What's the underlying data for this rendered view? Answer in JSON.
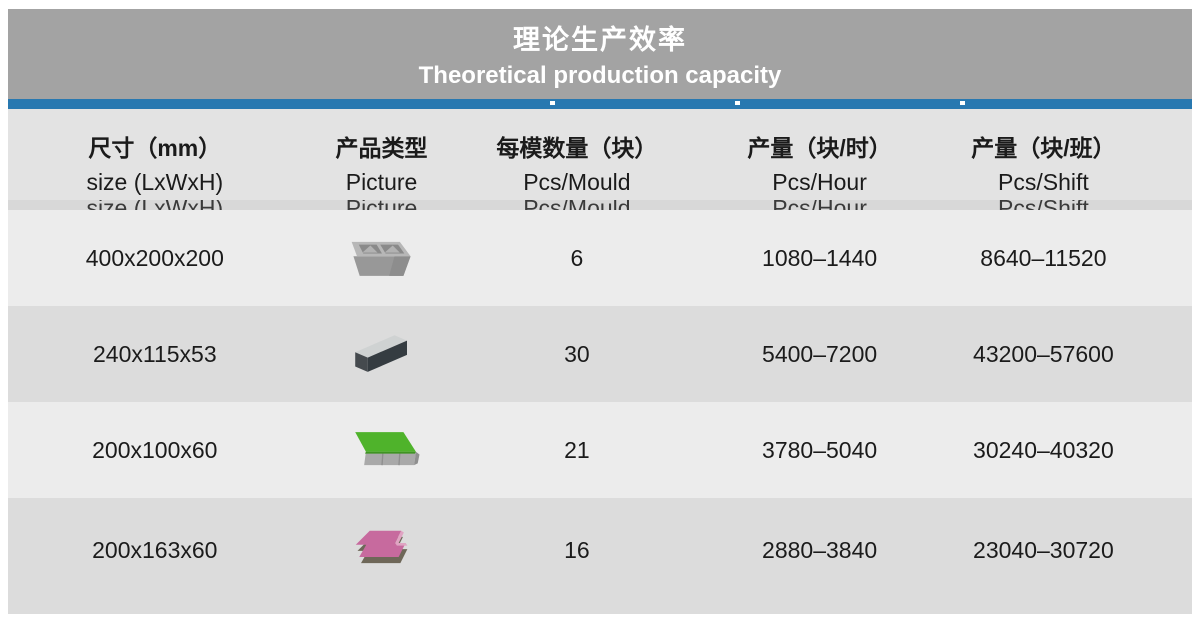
{
  "title": {
    "zh": "理论生产效率",
    "en": "Theoretical production capacity"
  },
  "table": {
    "columns": [
      {
        "zh": "尺寸（mm）",
        "en": "size (LxWxH)"
      },
      {
        "zh": "产品类型",
        "en": "Picture"
      },
      {
        "zh": "每模数量（块）",
        "en": "Pcs/Mould"
      },
      {
        "zh": "产量（块/时）",
        "en": "Pcs/Hour"
      },
      {
        "zh": "产量（块/班）",
        "en": "Pcs/Shift"
      }
    ],
    "rows": [
      {
        "size": "400x200x200",
        "picture": "hollow-block-icon",
        "pcs_mould": "6",
        "pcs_hour": "1080–1440",
        "pcs_shift": "8640–11520"
      },
      {
        "size": "240x115x53",
        "picture": "solid-brick-icon",
        "pcs_mould": "30",
        "pcs_hour": "5400–7200",
        "pcs_shift": "43200–57600"
      },
      {
        "size": "200x100x60",
        "picture": "green-paver-icon",
        "pcs_mould": "21",
        "pcs_hour": "3780–5040",
        "pcs_shift": "30240–40320"
      },
      {
        "size": "200x163x60",
        "picture": "interlock-paver-icon",
        "pcs_mould": "16",
        "pcs_hour": "2880–3840",
        "pcs_shift": "23040–30720"
      }
    ]
  },
  "colors": {
    "accent_blue": "#2878b0",
    "banner_gray": "#a3a3a3",
    "header_bg": "#e3e3e3",
    "ghost_bg": "#d8d8d8",
    "row_light": "#ececec",
    "row_dark": "#dcdcdc",
    "paver_green": "#4fb32b",
    "paver_pink": "#c76a9e"
  }
}
